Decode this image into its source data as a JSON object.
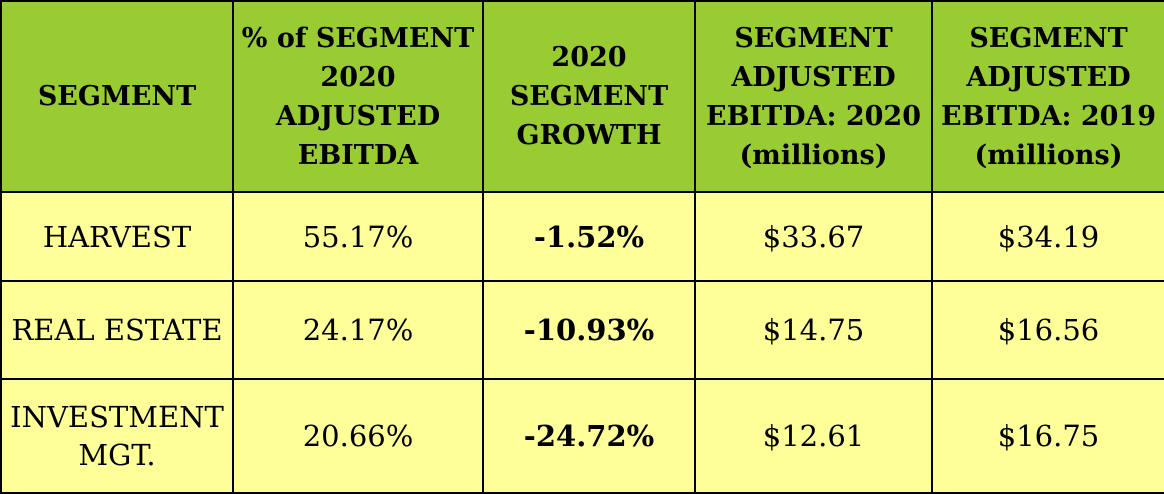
{
  "chart_data": {
    "type": "table",
    "columns": [
      [
        "SEGMENT"
      ],
      [
        "% of SEGMENT",
        "2020 ADJUSTED",
        "EBITDA"
      ],
      [
        "2020",
        "SEGMENT",
        "GROWTH"
      ],
      [
        "SEGMENT",
        "ADJUSTED",
        "EBITDA: 2020",
        "(millions)"
      ],
      [
        "SEGMENT",
        "ADJUSTED",
        "EBITDA: 2019",
        "(millions)"
      ]
    ],
    "rows": [
      {
        "segment": [
          "HARVEST"
        ],
        "pct_of_2020_adjusted_ebitda": "55.17%",
        "growth_2020": "-1.52%",
        "adjusted_ebitda_2020": "$33.67",
        "adjusted_ebitda_2019": "$34.19"
      },
      {
        "segment": [
          "REAL ESTATE"
        ],
        "pct_of_2020_adjusted_ebitda": "24.17%",
        "growth_2020": "-10.93%",
        "adjusted_ebitda_2020": "$14.75",
        "adjusted_ebitda_2019": "$16.56"
      },
      {
        "segment": [
          "INVESTMENT",
          "MGT."
        ],
        "pct_of_2020_adjusted_ebitda": "20.66%",
        "growth_2020": "-24.72%",
        "adjusted_ebitda_2020": "$12.61",
        "adjusted_ebitda_2019": "$16.75"
      }
    ],
    "colors": {
      "header_background": "#99cc33",
      "body_background": "#ffff99",
      "border": "#000000"
    }
  }
}
